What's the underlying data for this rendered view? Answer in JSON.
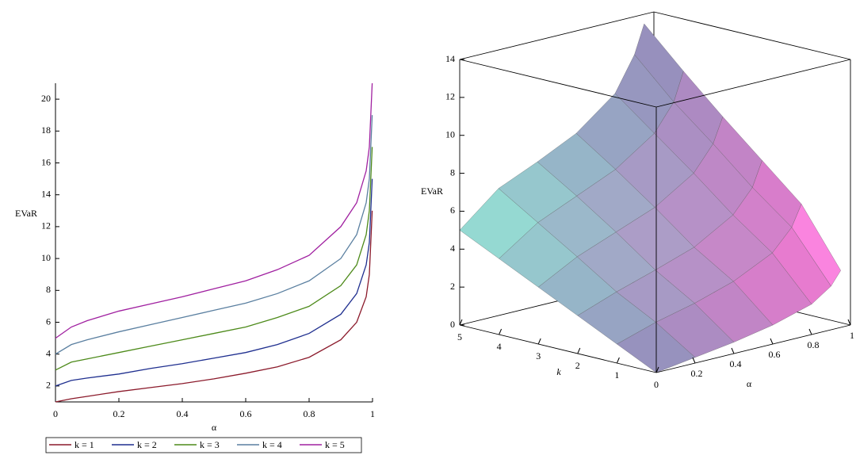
{
  "chart_data": [
    {
      "type": "line",
      "xlabel": "α",
      "ylabel": "EVaR",
      "x": [
        0,
        0.05,
        0.1,
        0.2,
        0.3,
        0.4,
        0.5,
        0.6,
        0.7,
        0.8,
        0.9,
        0.95,
        0.98,
        0.99,
        0.999
      ],
      "series": [
        {
          "name": "k = 1",
          "color": "#8b1a2b",
          "values": [
            1,
            1.2,
            1.35,
            1.65,
            1.9,
            2.15,
            2.45,
            2.8,
            3.2,
            3.8,
            4.9,
            6,
            7.6,
            9,
            13
          ]
        },
        {
          "name": "k = 2",
          "color": "#1f2f8f",
          "values": [
            2,
            2.35,
            2.5,
            2.75,
            3.1,
            3.4,
            3.75,
            4.1,
            4.6,
            5.3,
            6.5,
            7.8,
            9.6,
            11,
            15
          ]
        },
        {
          "name": "k = 3",
          "color": "#4d8a1a",
          "values": [
            3,
            3.5,
            3.7,
            4.1,
            4.5,
            4.9,
            5.3,
            5.7,
            6.3,
            7,
            8.3,
            9.6,
            11.5,
            13,
            17
          ]
        },
        {
          "name": "k = 4",
          "color": "#5a7fa0",
          "values": [
            4,
            4.6,
            4.9,
            5.4,
            5.85,
            6.3,
            6.75,
            7.2,
            7.8,
            8.6,
            10,
            11.5,
            13.5,
            15,
            19
          ]
        },
        {
          "name": "k = 5",
          "color": "#a020a0",
          "values": [
            5,
            5.7,
            6.1,
            6.7,
            7.15,
            7.6,
            8.1,
            8.6,
            9.3,
            10.2,
            12,
            13.5,
            15.5,
            17,
            21
          ]
        }
      ],
      "xlim": [
        0,
        1
      ],
      "xticks": [
        0,
        0.2,
        0.4,
        0.6,
        0.8,
        1
      ],
      "ylim": [
        1,
        21
      ],
      "yticks": [
        2,
        4,
        6,
        8,
        10,
        12,
        14,
        16,
        18,
        20
      ]
    },
    {
      "type": "surface3d",
      "zlabel": "EVaR",
      "klabel": "k",
      "alphalabel": "α",
      "k": [
        0,
        1,
        2,
        3,
        4,
        5
      ],
      "alpha": [
        0,
        0.2,
        0.4,
        0.6,
        0.8,
        0.9,
        0.95
      ],
      "z": [
        [
          0,
          0.3,
          0.6,
          1,
          1.6,
          2.3,
          3
        ],
        [
          1,
          1.65,
          2.15,
          2.8,
          3.8,
          4.9,
          6
        ],
        [
          2,
          2.75,
          3.4,
          4.1,
          5.3,
          6.5,
          7.8
        ],
        [
          3,
          4.1,
          4.9,
          5.7,
          7,
          8.3,
          9.6
        ],
        [
          4,
          5.4,
          6.3,
          7.2,
          8.6,
          10,
          11.5
        ],
        [
          5,
          6.7,
          7.6,
          8.6,
          10.2,
          12,
          13.5
        ]
      ],
      "klim": [
        0,
        5
      ],
      "kticks": [
        0,
        1,
        2,
        3,
        4,
        5
      ],
      "alphalim": [
        0,
        1
      ],
      "alphaticks": [
        0.2,
        0.4,
        0.6,
        0.8,
        1
      ],
      "zlim": [
        0,
        14
      ],
      "zticks": [
        0,
        2,
        4,
        6,
        8,
        10,
        12,
        14
      ]
    }
  ]
}
